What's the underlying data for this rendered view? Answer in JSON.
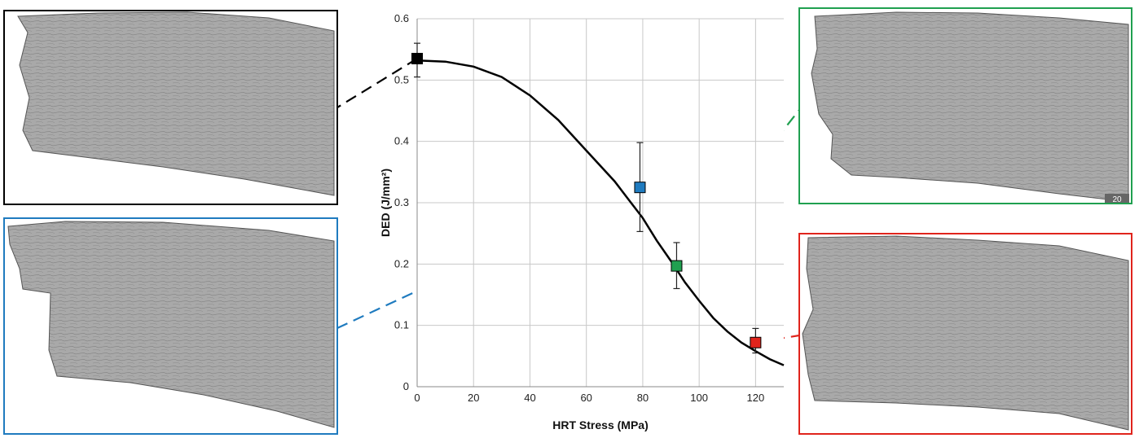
{
  "colors": {
    "black": "#000000",
    "blue": "#1f7bbf",
    "green": "#20a050",
    "red": "#e0241c",
    "grid": "#c8c8c8",
    "specimen_base": "#a9a9a9",
    "specimen_dark": "#555555"
  },
  "chart_data": {
    "type": "scatter",
    "xlabel": "HRT Stress (MPa)",
    "ylabel": "DED (J/mm²)",
    "xlim": [
      0,
      130
    ],
    "ylim": [
      0,
      0.6
    ],
    "x_ticks": [
      0,
      20,
      40,
      60,
      80,
      100,
      120
    ],
    "y_ticks": [
      0,
      0.1,
      0.2,
      0.3,
      0.4,
      0.5,
      0.6
    ],
    "grid": true,
    "points": [
      {
        "x": 0,
        "y": 0.535,
        "err_low": 0.505,
        "err_high": 0.56,
        "color": "black"
      },
      {
        "x": 79,
        "y": 0.325,
        "err_low": 0.253,
        "err_high": 0.398,
        "color": "blue"
      },
      {
        "x": 92,
        "y": 0.197,
        "err_low": 0.16,
        "err_high": 0.235,
        "color": "green"
      },
      {
        "x": 120,
        "y": 0.072,
        "err_low": 0.055,
        "err_high": 0.095,
        "color": "red"
      }
    ],
    "fit_curve": {
      "shape": "sigmoid",
      "x": [
        0,
        10,
        20,
        30,
        40,
        50,
        60,
        70,
        75,
        80,
        85,
        90,
        95,
        100,
        105,
        110,
        115,
        120,
        125,
        130
      ],
      "y": [
        0.532,
        0.53,
        0.522,
        0.505,
        0.475,
        0.435,
        0.385,
        0.335,
        0.305,
        0.275,
        0.238,
        0.205,
        0.17,
        0.14,
        0.112,
        0.09,
        0.072,
        0.058,
        0.045,
        0.035
      ]
    }
  },
  "insets": [
    {
      "id": "inset-black",
      "color": "black",
      "point_index": 0,
      "label": ""
    },
    {
      "id": "inset-blue",
      "color": "blue",
      "point_index": 1,
      "label": ""
    },
    {
      "id": "inset-green",
      "color": "green",
      "point_index": 2,
      "label": "20"
    },
    {
      "id": "inset-red",
      "color": "red",
      "point_index": 3,
      "label": ""
    }
  ]
}
